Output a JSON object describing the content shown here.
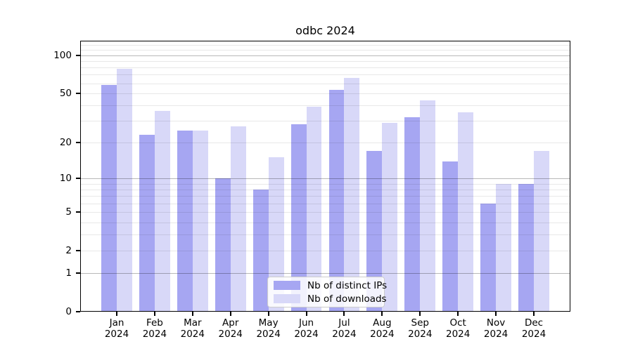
{
  "chart_data": {
    "type": "bar",
    "title": "odbc 2024",
    "categories": [
      "Jan",
      "Feb",
      "Mar",
      "Apr",
      "May",
      "Jun",
      "Jul",
      "Aug",
      "Sep",
      "Oct",
      "Nov",
      "Dec"
    ],
    "year_label": "2024",
    "series": [
      {
        "key": "distinct-ips",
        "name": "Nb of distinct IPs",
        "color": "#a6a6f2",
        "values": [
          58,
          23,
          25,
          10,
          8,
          28,
          53,
          17,
          32,
          14,
          6,
          9
        ]
      },
      {
        "key": "downloads",
        "name": "Nb of downloads",
        "color": "#d8d8f8",
        "values": [
          78,
          36,
          25,
          27,
          15,
          39,
          66,
          29,
          44,
          35,
          9,
          17
        ]
      }
    ],
    "yscale": "log1p",
    "ylim": [
      0,
      130
    ],
    "yticks": [
      0,
      1,
      2,
      5,
      10,
      20,
      50,
      100
    ],
    "grid": {
      "major": [
        1,
        10,
        100
      ],
      "minor": [
        2,
        3,
        4,
        5,
        6,
        7,
        8,
        9,
        20,
        30,
        40,
        50,
        60,
        70,
        80,
        90,
        110,
        120
      ]
    },
    "legend_position": "lower center",
    "grid_on": true
  },
  "colors": {
    "bar_ips": "#a6a6f2",
    "bar_downloads": "#d8d8f8",
    "grid_minor": "rgba(0,0,0,0.09)",
    "grid_major": "rgba(0,0,0,0.28)",
    "axis": "#000000",
    "legend_border": "#cccccc"
  }
}
